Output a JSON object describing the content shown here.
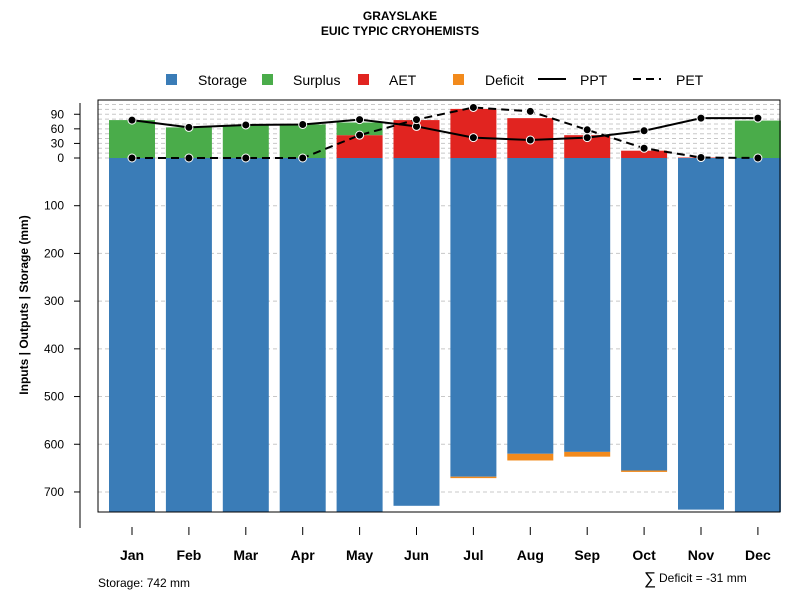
{
  "chart_data": {
    "type": "bar",
    "title": "GRAYSLAKE",
    "subtitle": "EUIC TYPIC CRYOHEMISTS",
    "ylabel": "Inputs | Outputs | Storage    (mm)",
    "categories": [
      "Jan",
      "Feb",
      "Mar",
      "Apr",
      "May",
      "Jun",
      "Jul",
      "Aug",
      "Sep",
      "Oct",
      "Nov",
      "Dec"
    ],
    "storage_ticks": [
      100,
      200,
      300,
      400,
      500,
      600,
      700
    ],
    "flux_ticks": [
      0,
      30,
      60,
      90
    ],
    "ylim_storage": [
      0,
      742
    ],
    "ylim_flux": [
      0,
      115
    ],
    "legend": {
      "storage": "Storage",
      "surplus": "Surplus",
      "aet": "AET",
      "deficit": "Deficit",
      "ppt": "PPT",
      "pet": "PET"
    },
    "series": [
      {
        "name": "Storage",
        "values": [
          742,
          742,
          742,
          742,
          742,
          729,
          668,
          620,
          616,
          655,
          737,
          742
        ]
      },
      {
        "name": "Surplus",
        "values": [
          78,
          63,
          68,
          69,
          26,
          0,
          0,
          0,
          0,
          0,
          0,
          77
        ]
      },
      {
        "name": "AET",
        "values": [
          0,
          0,
          0,
          0,
          47,
          78,
          101,
          82,
          47,
          15,
          1,
          0
        ]
      },
      {
        "name": "Deficit",
        "values": [
          0,
          0,
          0,
          0,
          0,
          0,
          3,
          14,
          10,
          3,
          0,
          0
        ]
      },
      {
        "name": "PPT",
        "values": [
          78,
          63,
          68,
          69,
          79,
          65,
          42,
          37,
          42,
          56,
          82,
          82
        ]
      },
      {
        "name": "PET",
        "values": [
          0,
          0,
          0,
          0,
          47,
          79,
          104,
          96,
          58,
          20,
          1,
          0
        ]
      }
    ],
    "colors": {
      "storage": "#3a7cb7",
      "surplus": "#4aac4a",
      "aet": "#e12420",
      "deficit": "#f28a1c"
    },
    "notes": {
      "storage": "Storage: 742 mm",
      "deficit_symbol": "∑",
      "deficit": "Deficit = -31 mm"
    }
  }
}
